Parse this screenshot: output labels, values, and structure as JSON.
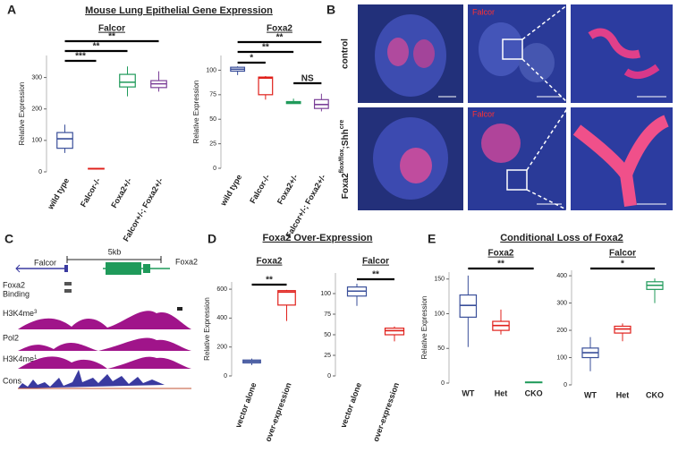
{
  "panel_labels": [
    "A",
    "B",
    "C",
    "D",
    "E"
  ],
  "panel_titles": {
    "A": "Mouse Lung Epithelial Gene Expression",
    "D": "Foxa2 Over-Expression",
    "E": "Conditional Loss of Foxa2"
  },
  "images": {
    "row_labels": [
      "control",
      [
        "Foxa2",
        "flox/flox",
        ";Shh",
        "cre"
      ]
    ],
    "channel_labels": [
      "Falcor",
      "Falcor"
    ]
  },
  "tracks": {
    "scale": "5kb",
    "genes": [
      "Falcor",
      "Foxa2"
    ],
    "rows": [
      [
        "Foxa2",
        "Binding"
      ],
      [
        "H3K4me",
        "3"
      ],
      "Pol2",
      [
        "H3K4me",
        "1"
      ],
      "Cons"
    ]
  },
  "chart_data": [
    {
      "type": "box",
      "title": "Falcor",
      "y_label": "Relative Expression",
      "categories": [
        "wild type",
        "Falcor-/-",
        "Foxa2+/-",
        "Falcor+/-; Foxa2+/-"
      ],
      "colors": [
        "#3a4f9a",
        "#e0201b",
        "#1f9a5a",
        "#7b3f98"
      ],
      "boxes": [
        {
          "min": 60,
          "q1": 75,
          "median": 105,
          "q3": 125,
          "max": 150
        },
        {
          "min": 8,
          "q1": 9,
          "median": 10,
          "q3": 11,
          "max": 12
        },
        {
          "min": 240,
          "q1": 270,
          "median": 285,
          "q3": 310,
          "max": 335
        },
        {
          "min": 255,
          "q1": 268,
          "median": 280,
          "q3": 290,
          "max": 320
        }
      ],
      "ylim": [
        0,
        370
      ],
      "yticks": [
        0,
        100,
        200,
        300
      ],
      "comparisons": [
        {
          "label": "***",
          "groups": [
            0,
            1
          ]
        },
        {
          "label": "**",
          "groups": [
            0,
            2
          ]
        },
        {
          "label": "**",
          "groups": [
            0,
            3
          ]
        }
      ]
    },
    {
      "type": "box",
      "title": "Foxa2",
      "y_label": "Relative Expression",
      "categories": [
        "wild type",
        "Falcor-/-",
        "Foxa2+/-",
        "Falcor+/-; Foxa2+/-"
      ],
      "colors": [
        "#3a4f9a",
        "#e0201b",
        "#1f9a5a",
        "#7b3f98"
      ],
      "boxes": [
        {
          "min": 95,
          "q1": 99,
          "median": 101,
          "q3": 103,
          "max": 104
        },
        {
          "min": 70,
          "q1": 75,
          "median": 92,
          "q3": 93,
          "max": 94
        },
        {
          "min": 66,
          "q1": 66,
          "median": 67,
          "q3": 68,
          "max": 71
        },
        {
          "min": 58,
          "q1": 61,
          "median": 65,
          "q3": 70,
          "max": 76
        }
      ],
      "ylim": [
        0,
        115
      ],
      "yticks": [
        0,
        25,
        50,
        75,
        100
      ],
      "comparisons": [
        {
          "label": "*",
          "groups": [
            0,
            1
          ]
        },
        {
          "label": "**",
          "groups": [
            0,
            2
          ]
        },
        {
          "label": "**",
          "groups": [
            0,
            3
          ]
        },
        {
          "label": "NS",
          "groups": [
            2,
            3
          ]
        }
      ]
    },
    {
      "type": "box",
      "title": "Foxa2",
      "y_label": "Relative Expression",
      "categories": [
        "vector alone",
        "over-expression"
      ],
      "colors": [
        "#3a4f9a",
        "#e0201b"
      ],
      "boxes": [
        {
          "min": 75,
          "q1": 90,
          "median": 100,
          "q3": 110,
          "max": 120
        },
        {
          "min": 380,
          "q1": 490,
          "median": 580,
          "q3": 590,
          "max": 595
        }
      ],
      "ylim": [
        0,
        650
      ],
      "yticks": [
        0,
        200,
        400,
        600
      ],
      "comparisons": [
        {
          "label": "**",
          "groups": [
            0,
            1
          ]
        }
      ]
    },
    {
      "type": "box",
      "title": "Falcor",
      "categories": [
        "vector alone",
        "over-expression"
      ],
      "colors": [
        "#3a4f9a",
        "#e0201b"
      ],
      "boxes": [
        {
          "min": 85,
          "q1": 97,
          "median": 103,
          "q3": 108,
          "max": 112
        },
        {
          "min": 42,
          "q1": 50,
          "median": 55,
          "q3": 58,
          "max": 60
        }
      ],
      "ylim": [
        0,
        125
      ],
      "yticks": [
        0,
        25,
        50,
        75,
        100
      ],
      "comparisons": [
        {
          "label": "**",
          "groups": [
            0,
            1
          ]
        }
      ]
    },
    {
      "type": "box",
      "title": "Foxa2",
      "y_label": "Relative Expression",
      "categories": [
        "WT",
        "Het",
        "CKO"
      ],
      "colors": [
        "#3a4f9a",
        "#e0201b",
        "#1f9a5a"
      ],
      "boxes": [
        {
          "min": 52,
          "q1": 95,
          "median": 112,
          "q3": 127,
          "max": 155
        },
        {
          "min": 70,
          "q1": 76,
          "median": 83,
          "q3": 89,
          "max": 106
        },
        {
          "min": 0,
          "q1": 0.5,
          "median": 1,
          "q3": 1.5,
          "max": 2
        }
      ],
      "ylim": [
        0,
        160
      ],
      "yticks": [
        0,
        50,
        100,
        150
      ],
      "comparisons": [
        {
          "label": "**",
          "groups": [
            0,
            2
          ]
        }
      ]
    },
    {
      "type": "box",
      "title": "Falcor",
      "categories": [
        "WT",
        "Het",
        "CKO"
      ],
      "colors": [
        "#3a4f9a",
        "#e0201b",
        "#1f9a5a"
      ],
      "boxes": [
        {
          "min": 50,
          "q1": 100,
          "median": 118,
          "q3": 135,
          "max": 175
        },
        {
          "min": 160,
          "q1": 190,
          "median": 205,
          "q3": 215,
          "max": 225
        },
        {
          "min": 300,
          "q1": 350,
          "median": 365,
          "q3": 378,
          "max": 390
        }
      ],
      "ylim": [
        0,
        420
      ],
      "yticks": [
        0,
        100,
        200,
        300,
        400
      ],
      "comparisons": [
        {
          "label": "*",
          "groups": [
            0,
            2
          ]
        }
      ]
    }
  ]
}
